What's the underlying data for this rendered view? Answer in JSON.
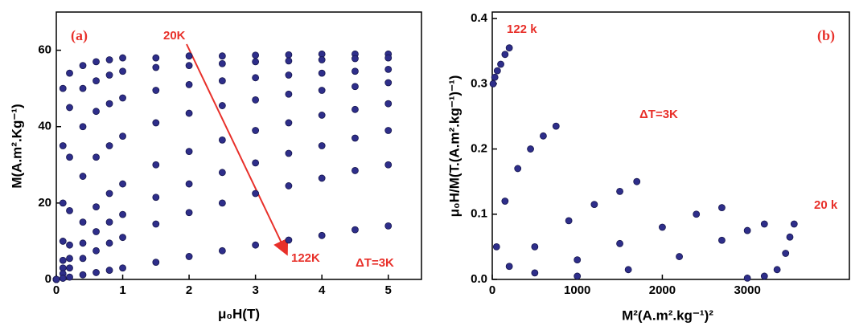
{
  "chart_data": [
    {
      "type": "scatter",
      "annotations": [
        "(a)",
        "20K",
        "122K",
        "ΔT=3K"
      ],
      "x_label": "μ₀H(T)",
      "y_label": "M(A.m².Kg⁻¹)",
      "xlim": [
        0,
        5.5
      ],
      "ylim": [
        0,
        70
      ],
      "xticks": [
        0,
        1,
        2,
        3,
        4,
        5
      ],
      "yticks": [
        0,
        20,
        40,
        60
      ],
      "x": [
        0,
        0.1,
        0.2,
        0.4,
        0.6,
        0.8,
        1,
        1.5,
        2,
        2.5,
        3,
        3.5,
        4,
        4.5,
        5
      ],
      "series": [
        {
          "color": "#2e2e8a",
          "values": [
            0,
            50,
            54,
            56,
            57,
            57.5,
            58,
            58,
            58.5,
            58.5,
            58.7,
            58.8,
            59,
            59,
            59
          ]
        },
        {
          "color": "#2e2e8a",
          "values": [
            0,
            35,
            45,
            50,
            52,
            53.5,
            54.5,
            55.5,
            56,
            56.5,
            57,
            57.2,
            57.5,
            57.8,
            58
          ]
        },
        {
          "color": "#2e2e8a",
          "values": [
            0,
            20,
            32,
            40,
            44,
            46,
            47.5,
            49.5,
            51,
            52,
            52.8,
            53.5,
            54,
            54.5,
            55
          ]
        },
        {
          "color": "#2e2e8a",
          "values": [
            0,
            10,
            18,
            27,
            32,
            35,
            37.5,
            41,
            43.5,
            45.5,
            47,
            48.5,
            49.5,
            50.5,
            51.5
          ]
        },
        {
          "color": "#2e2e8a",
          "values": [
            0,
            5,
            9,
            15,
            19,
            22.5,
            25,
            30,
            33.5,
            36.5,
            39,
            41,
            43,
            44.5,
            46
          ]
        },
        {
          "color": "#2e2e8a",
          "values": [
            0,
            3,
            5.5,
            9.5,
            12.5,
            15,
            17,
            21.5,
            25,
            28,
            30.5,
            33,
            35,
            37,
            39
          ]
        },
        {
          "color": "#2e2e8a",
          "values": [
            0,
            1.5,
            3,
            5.5,
            7.5,
            9.5,
            11,
            14.5,
            17.5,
            20,
            22.5,
            24.5,
            26.5,
            28.5,
            30
          ]
        },
        {
          "color": "#2e2e8a",
          "values": [
            0,
            0.3,
            0.6,
            1.2,
            1.8,
            2.4,
            3,
            4.5,
            6,
            7.5,
            9,
            10.3,
            11.5,
            13,
            14
          ]
        }
      ]
    },
    {
      "type": "scatter",
      "annotations": [
        "(b)",
        "122 k",
        "20 k",
        "ΔT=3K"
      ],
      "x_label": "M²(A.m².kg⁻¹)²",
      "y_label": "μ₀H/M(T.(A.m².kg⁻¹)⁻¹)",
      "xlim": [
        0,
        4200
      ],
      "ylim": [
        0,
        0.41
      ],
      "xticks": [
        0,
        1000,
        2000,
        3000
      ],
      "yticks": [
        {
          "value": 0,
          "label": "0.0"
        },
        {
          "value": 0.1,
          "label": "0.1"
        },
        {
          "value": 0.2,
          "label": "0.2"
        },
        {
          "value": 0.3,
          "label": "0.3"
        },
        {
          "value": 0.4,
          "label": "0.4"
        }
      ],
      "series": [
        {
          "color": "#2e2e8a",
          "x": [
            10,
            30,
            60,
            100,
            150,
            200
          ],
          "values": [
            0.3,
            0.31,
            0.32,
            0.33,
            0.345,
            0.355
          ]
        },
        {
          "color": "#2e2e8a",
          "x": [
            50,
            150,
            300,
            450,
            600,
            750
          ],
          "values": [
            0.05,
            0.12,
            0.17,
            0.2,
            0.22,
            0.235
          ]
        },
        {
          "color": "#2e2e8a",
          "x": [
            200,
            500,
            900,
            1200,
            1500,
            1700
          ],
          "values": [
            0.02,
            0.05,
            0.09,
            0.115,
            0.135,
            0.15
          ]
        },
        {
          "color": "#2e2e8a",
          "x": [
            500,
            1000,
            1500,
            2000,
            2400,
            2700
          ],
          "values": [
            0.01,
            0.03,
            0.055,
            0.08,
            0.1,
            0.11
          ]
        },
        {
          "color": "#2e2e8a",
          "x": [
            1000,
            1600,
            2200,
            2700,
            3000,
            3200
          ],
          "values": [
            0.005,
            0.015,
            0.035,
            0.06,
            0.075,
            0.085
          ]
        },
        {
          "color": "#2e2e8a",
          "x": [
            3000,
            3200,
            3350,
            3450,
            3500,
            3550
          ],
          "values": [
            0.002,
            0.005,
            0.015,
            0.04,
            0.065,
            0.085
          ]
        }
      ]
    }
  ]
}
